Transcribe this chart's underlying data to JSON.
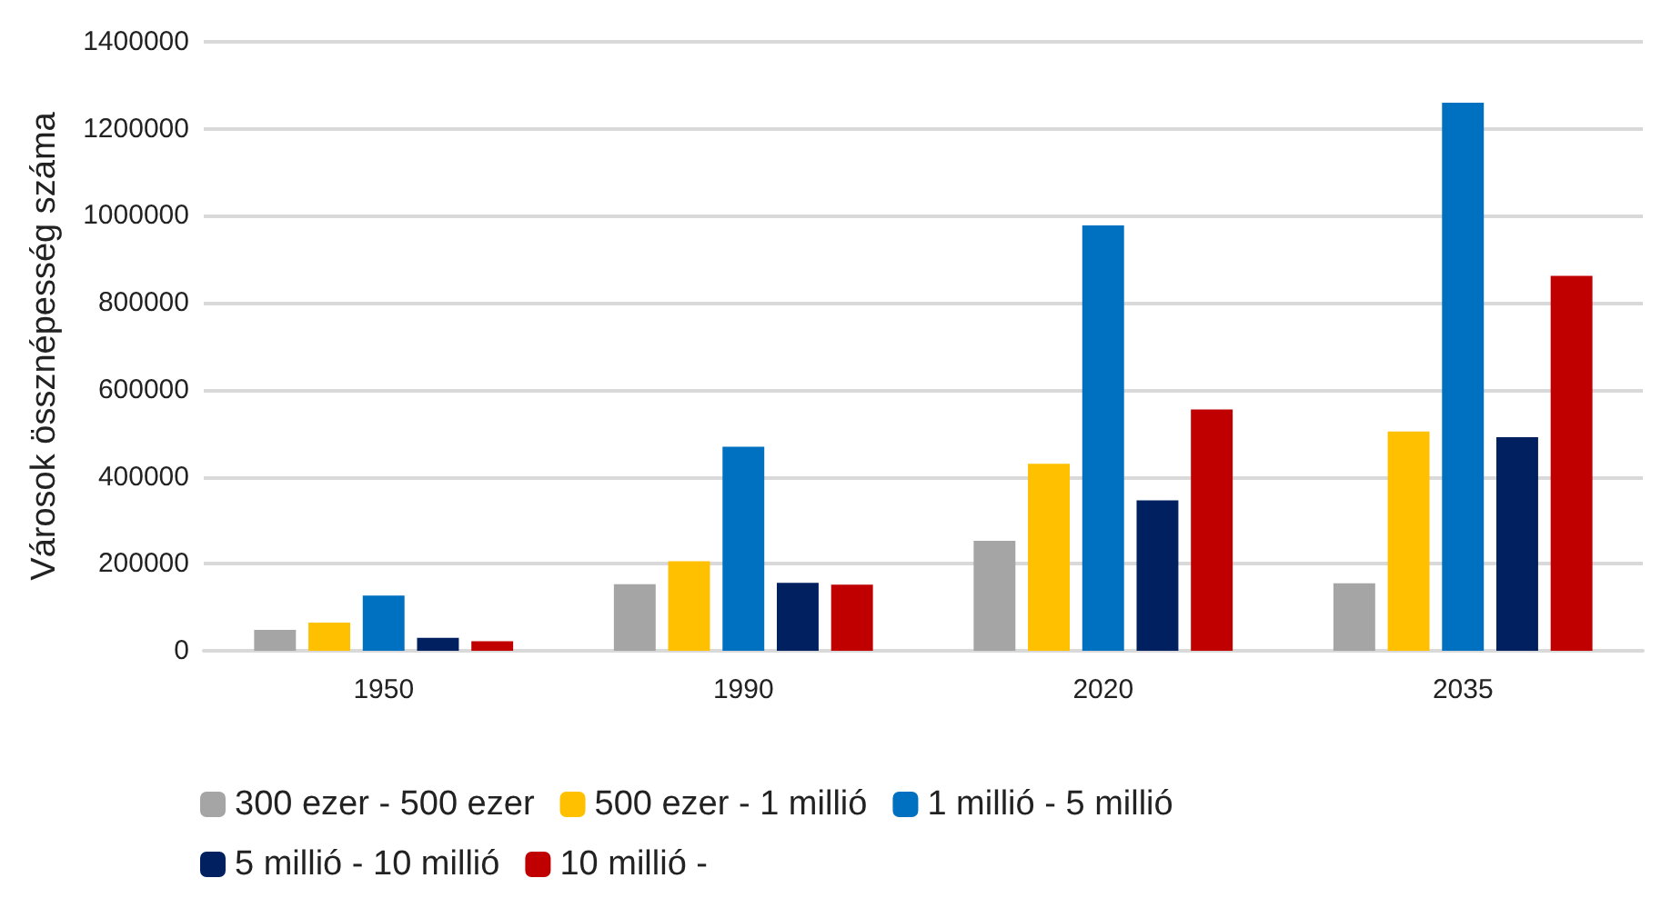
{
  "chart_data": {
    "type": "bar",
    "ylabel": "Városok össznépesség száma",
    "categories": [
      "1950",
      "1990",
      "2020",
      "2035"
    ],
    "series": [
      {
        "name": "300 ezer - 500 ezer",
        "color": "#a5a5a5",
        "values": [
          48000,
          153000,
          253000,
          155000
        ]
      },
      {
        "name": "500 ezer - 1 millió",
        "color": "#ffc000",
        "values": [
          65000,
          206000,
          430000,
          504000
        ]
      },
      {
        "name": "1 millió - 5 millió",
        "color": "#0070c0",
        "values": [
          127000,
          469000,
          978000,
          1260000
        ]
      },
      {
        "name": "5 millió - 10 millió",
        "color": "#002060",
        "values": [
          30000,
          156000,
          346000,
          491000
        ]
      },
      {
        "name": "10 millió -",
        "color": "#c00000",
        "values": [
          22000,
          152000,
          555000,
          862000
        ]
      }
    ],
    "ylim": [
      0,
      1400000
    ],
    "yticks": [
      0,
      200000,
      400000,
      600000,
      800000,
      1000000,
      1200000,
      1400000
    ],
    "grid": "y",
    "legend": "bottom"
  }
}
